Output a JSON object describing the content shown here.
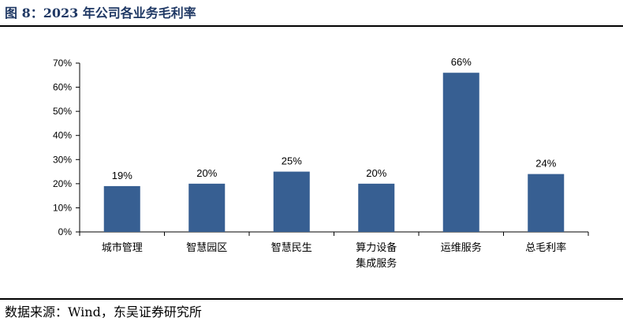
{
  "figure_title": "图 8：2023 年公司各业务毛利率",
  "source": "数据来源：Wind，东吴证券研究所",
  "colors": {
    "bar": "#375f92",
    "title": "#1f3864",
    "axis": "#000000"
  },
  "chart_data": {
    "type": "bar",
    "title": "",
    "xlabel": "",
    "ylabel": "",
    "categories": [
      [
        "城市管理"
      ],
      [
        "智慧园区"
      ],
      [
        "智慧民生"
      ],
      [
        "算力设备",
        "集成服务"
      ],
      [
        "运维服务"
      ],
      [
        "总毛利率"
      ]
    ],
    "values": [
      19,
      20,
      25,
      20,
      66,
      24
    ],
    "data_labels": [
      "19%",
      "20%",
      "25%",
      "20%",
      "66%",
      "24%"
    ],
    "ylim": [
      0,
      70
    ],
    "yticks": [
      0,
      10,
      20,
      30,
      40,
      50,
      60,
      70
    ],
    "ytick_labels": [
      "0%",
      "10%",
      "20%",
      "30%",
      "40%",
      "50%",
      "60%",
      "70%"
    ],
    "grid": false,
    "legend": "none"
  }
}
